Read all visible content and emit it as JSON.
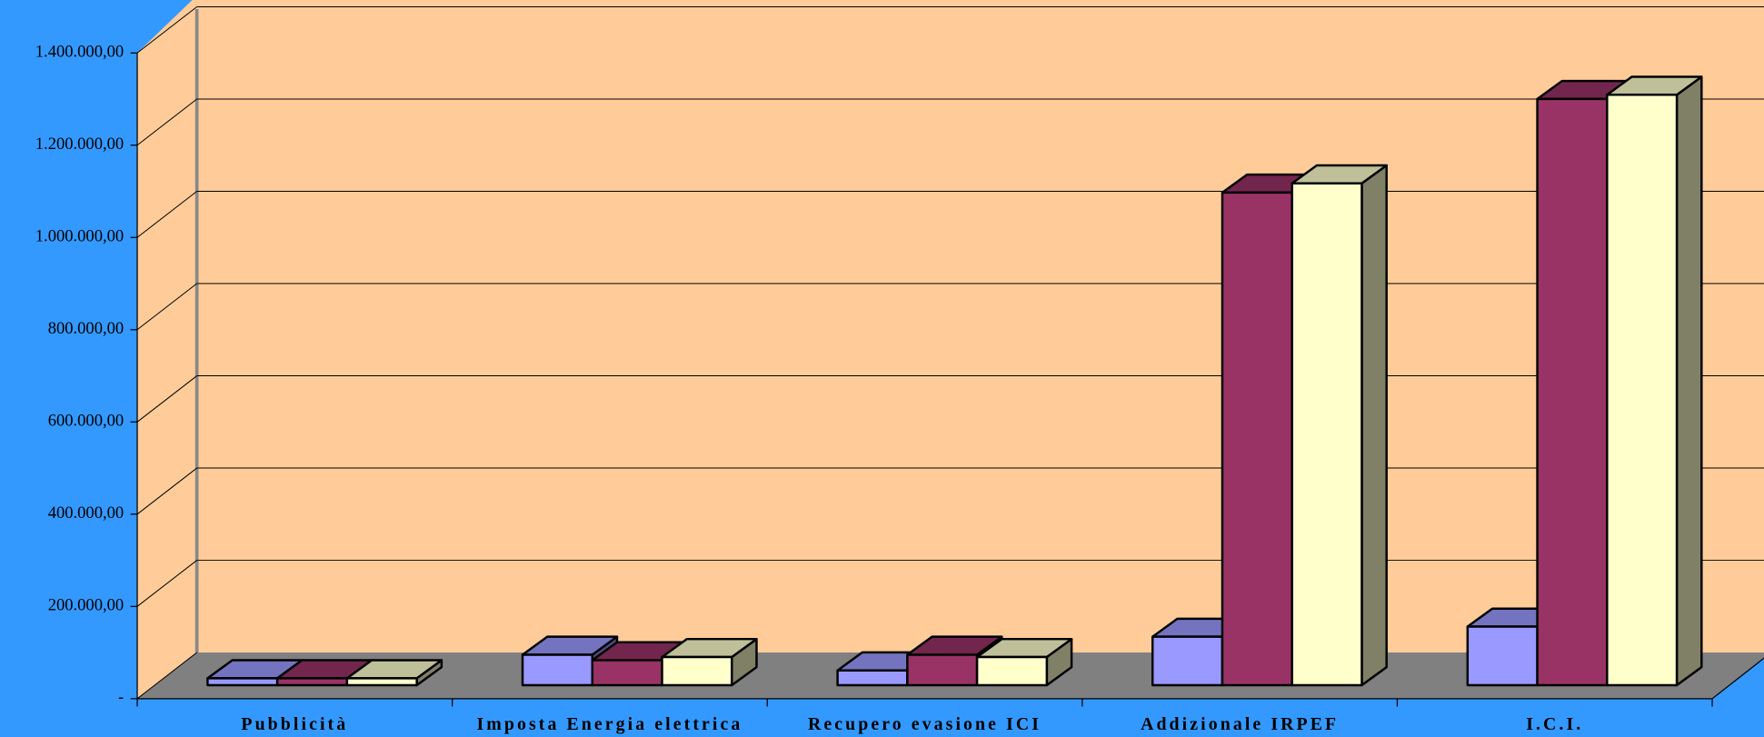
{
  "chart_data": {
    "type": "bar3d",
    "categories": [
      "Pubblicità",
      "Imposta Energia elettrica",
      "Recupero evasione ICI",
      "Addizionale IRPEF",
      "I.C.I."
    ],
    "series": [
      {
        "color": "#9999ff",
        "values": [
          15000,
          66000,
          32000,
          105000,
          127000
        ]
      },
      {
        "color": "#993366",
        "values": [
          15000,
          54000,
          66000,
          1068000,
          1271000
        ]
      },
      {
        "color": "#ffffcc",
        "values": [
          15000,
          61000,
          61000,
          1088000,
          1280000
        ]
      }
    ],
    "ylim": [
      0,
      1400000
    ],
    "yticks": [
      {
        "value": 0,
        "label": "-"
      },
      {
        "value": 200000,
        "label": "200.000,00"
      },
      {
        "value": 400000,
        "label": "400.000,00"
      },
      {
        "value": 600000,
        "label": "600.000,00"
      },
      {
        "value": 800000,
        "label": "800.000,00"
      },
      {
        "value": 1000000,
        "label": "1.000.000,00"
      },
      {
        "value": 1200000,
        "label": "1.200.000,00"
      },
      {
        "value": 1400000,
        "label": "1.400.000,00"
      }
    ],
    "grid": true
  }
}
